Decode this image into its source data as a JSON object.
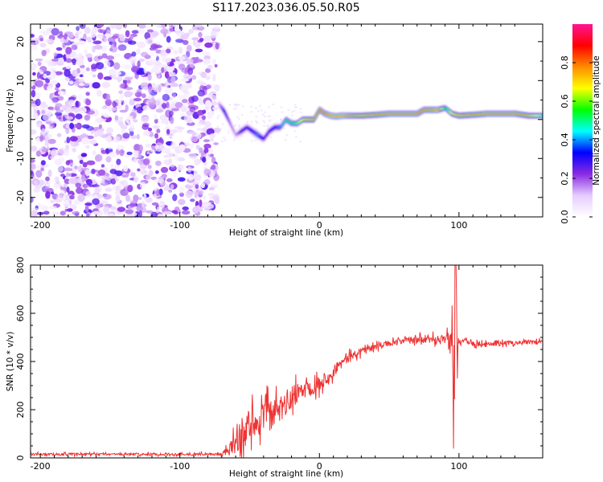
{
  "title": "S117.2023.036.05.50.R05",
  "chart_data": [
    {
      "type": "heatmap",
      "description_of_content": "spectrogram",
      "xlabel": "Height of straight line (km)",
      "ylabel": "Frequency (Hz)",
      "xlim": [
        -207,
        160
      ],
      "ylim": [
        -25,
        24.5
      ],
      "xticks": [
        -200,
        -100,
        0,
        100
      ],
      "xtick_labels": [
        "-200",
        "-100",
        "0",
        "100"
      ],
      "yticks": [
        -20,
        -10,
        0,
        10,
        20
      ],
      "ytick_labels": [
        "-20",
        "-10",
        "0",
        "10",
        "20"
      ],
      "noise_region": [
        -207,
        -73
      ],
      "ridge": {
        "x": [
          -72,
          -68,
          -64,
          -60,
          -56,
          -52,
          -48,
          -44,
          -40,
          -36,
          -32,
          -28,
          -24,
          -20,
          -16,
          -12,
          -8,
          -4,
          0,
          4,
          8,
          12,
          16,
          20,
          30,
          40,
          50,
          60,
          70,
          75,
          80,
          85,
          90,
          95,
          100,
          110,
          120,
          130,
          140,
          150,
          160
        ],
        "y": [
          4,
          2,
          -1,
          -4,
          -3,
          -2,
          -3,
          -4,
          -5,
          -3,
          -2,
          -2,
          0,
          -1,
          -1,
          0,
          0,
          0,
          2.5,
          1.5,
          1,
          0.8,
          1,
          1,
          1,
          1.2,
          1.5,
          1.5,
          1.5,
          2.5,
          2.5,
          2.5,
          3,
          1.5,
          1,
          1.2,
          1.5,
          1.5,
          1.5,
          1,
          1
        ],
        "amplitude": [
          0.15,
          0.35,
          0.2,
          0.15,
          0.3,
          0.3,
          0.35,
          0.4,
          0.3,
          0.3,
          0.35,
          0.4,
          0.5,
          0.55,
          0.6,
          0.7,
          0.75,
          0.8,
          0.85,
          0.85,
          0.9,
          0.9,
          0.9,
          0.85,
          0.75,
          0.8,
          0.85,
          0.85,
          0.85,
          0.85,
          0.85,
          0.9,
          0.5,
          0.7,
          0.75,
          0.8,
          0.85,
          0.85,
          0.85,
          0.75,
          0.6
        ]
      },
      "colorbar": {
        "label": "Normalized spectral amplitude",
        "range": [
          0,
          1
        ],
        "ticks": [
          0.0,
          0.2,
          0.4,
          0.6,
          0.8
        ],
        "tick_labels": [
          "0.0",
          "0.2",
          "0.4",
          "0.6",
          "0.8"
        ],
        "colormap": [
          "#ffffff",
          "#e6ccff",
          "#8a2be2",
          "#0000ff",
          "#00ffff",
          "#00ff00",
          "#ffff00",
          "#ff8c00",
          "#ff0000",
          "#ff1493"
        ]
      }
    },
    {
      "type": "line",
      "xlabel": "Height of straight line (km)",
      "ylabel": "SNR (10 * v/v)",
      "xlim": [
        -207,
        160
      ],
      "ylim": [
        0,
        800
      ],
      "xticks": [
        -200,
        -100,
        0,
        100
      ],
      "xtick_labels": [
        "-200",
        "-100",
        "0",
        "100"
      ],
      "yticks": [
        0,
        200,
        400,
        600,
        800
      ],
      "ytick_labels": [
        "0",
        "200",
        "400",
        "600",
        "800"
      ],
      "color": "#ee3333",
      "series": [
        {
          "x": [
            -207,
            -180,
            -150,
            -120,
            -100,
            -90,
            -80,
            -70,
            -65,
            -60,
            -55,
            -50,
            -45,
            -40,
            -35,
            -30,
            -25,
            -20,
            -15,
            -10,
            -5,
            0,
            5,
            10,
            15,
            20,
            25,
            30,
            35,
            40,
            45,
            50,
            55,
            60,
            70,
            80,
            85,
            90,
            94,
            96,
            98,
            100,
            102,
            104,
            108,
            115,
            130,
            145,
            160
          ],
          "y": [
            15,
            15,
            15,
            15,
            15,
            15,
            15,
            15,
            30,
            60,
            100,
            140,
            150,
            170,
            180,
            190,
            220,
            250,
            270,
            290,
            300,
            310,
            330,
            360,
            390,
            410,
            430,
            445,
            455,
            460,
            470,
            475,
            480,
            485,
            490,
            490,
            495,
            500,
            470,
            300,
            420,
            480,
            490,
            495,
            480,
            470,
            475,
            480,
            480
          ],
          "noise": [
            6,
            6,
            6,
            6,
            6,
            6,
            6,
            8,
            30,
            60,
            90,
            90,
            80,
            80,
            80,
            70,
            70,
            60,
            50,
            50,
            40,
            40,
            30,
            30,
            30,
            25,
            20,
            20,
            15,
            15,
            15,
            15,
            15,
            15,
            20,
            20,
            25,
            30,
            60,
            260,
            60,
            25,
            20,
            15,
            15,
            12,
            12,
            12,
            12
          ]
        }
      ],
      "annotations": {
        "spike": {
          "x": 97.5,
          "ymax": 800,
          "ymin": 55
        }
      }
    }
  ]
}
